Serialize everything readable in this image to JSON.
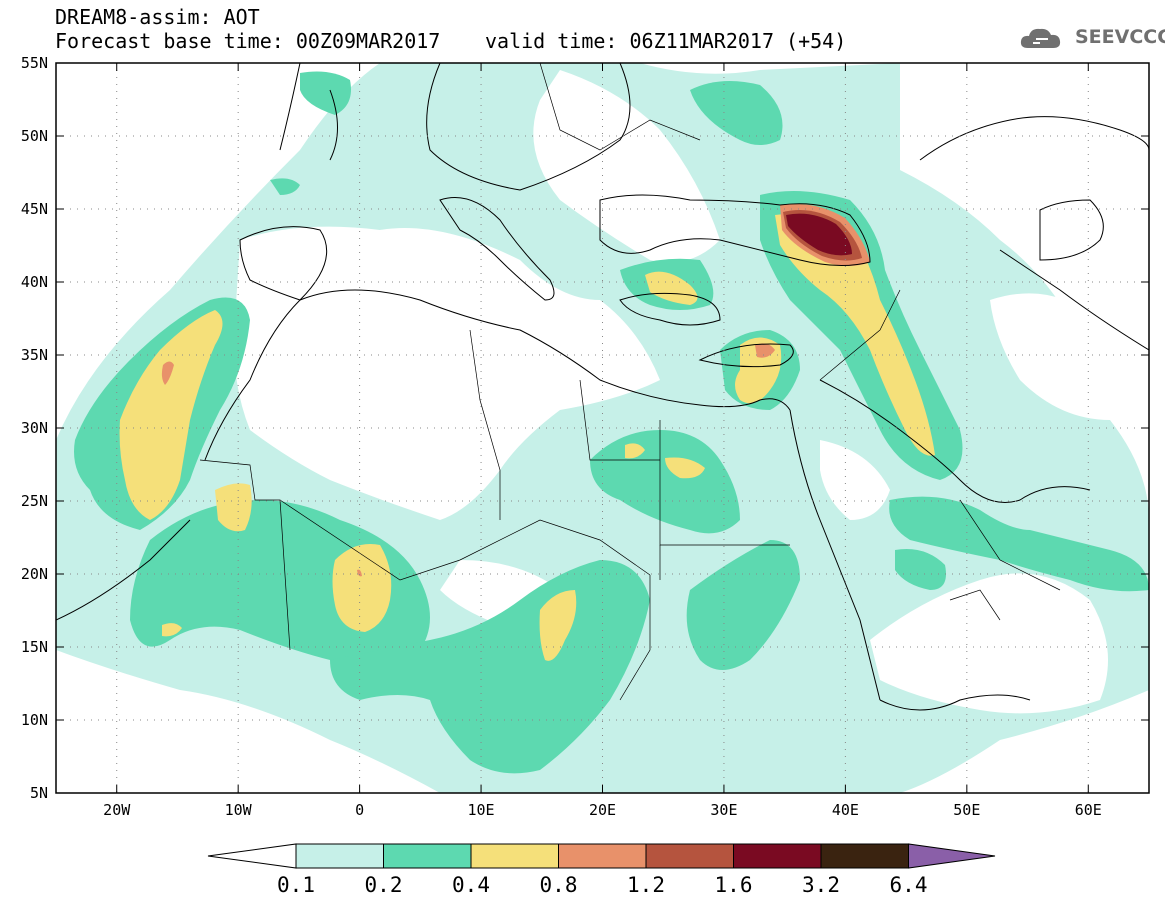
{
  "header": {
    "title": "DREAM8-assim: AOT",
    "base_time": "Forecast base time: 00Z09MAR2017",
    "valid_time": "valid time: 06Z11MAR2017 (+54)"
  },
  "logo": {
    "text": "SEEVCCC",
    "icon": "cloud-icon"
  },
  "map": {
    "lon_ticks": [
      "20W",
      "10W",
      "0",
      "10E",
      "20E",
      "30E",
      "40E",
      "50E",
      "60E"
    ],
    "lat_ticks": [
      "55N",
      "50N",
      "45N",
      "40N",
      "35N",
      "30N",
      "25N",
      "20N",
      "15N",
      "10N",
      "5N"
    ],
    "extent": {
      "lon": [
        -25,
        65
      ],
      "lat": [
        5,
        55
      ]
    }
  },
  "colorbar": {
    "labels": [
      "0.1",
      "0.2",
      "0.4",
      "0.8",
      "1.2",
      "1.6",
      "3.2",
      "6.4"
    ],
    "colors": [
      "#ffffff",
      "#c6f0e8",
      "#5dd9b0",
      "#f5e07a",
      "#e8916a",
      "#b5543e",
      "#7a0a22",
      "#3a2310",
      "#8a5fa8"
    ]
  },
  "fill_colors": {
    "c01": "#c6f0e8",
    "c02": "#5dd9b0",
    "c04": "#f5e07a",
    "c08": "#e8916a",
    "c12": "#b5543e",
    "c16": "#7a0a22"
  }
}
